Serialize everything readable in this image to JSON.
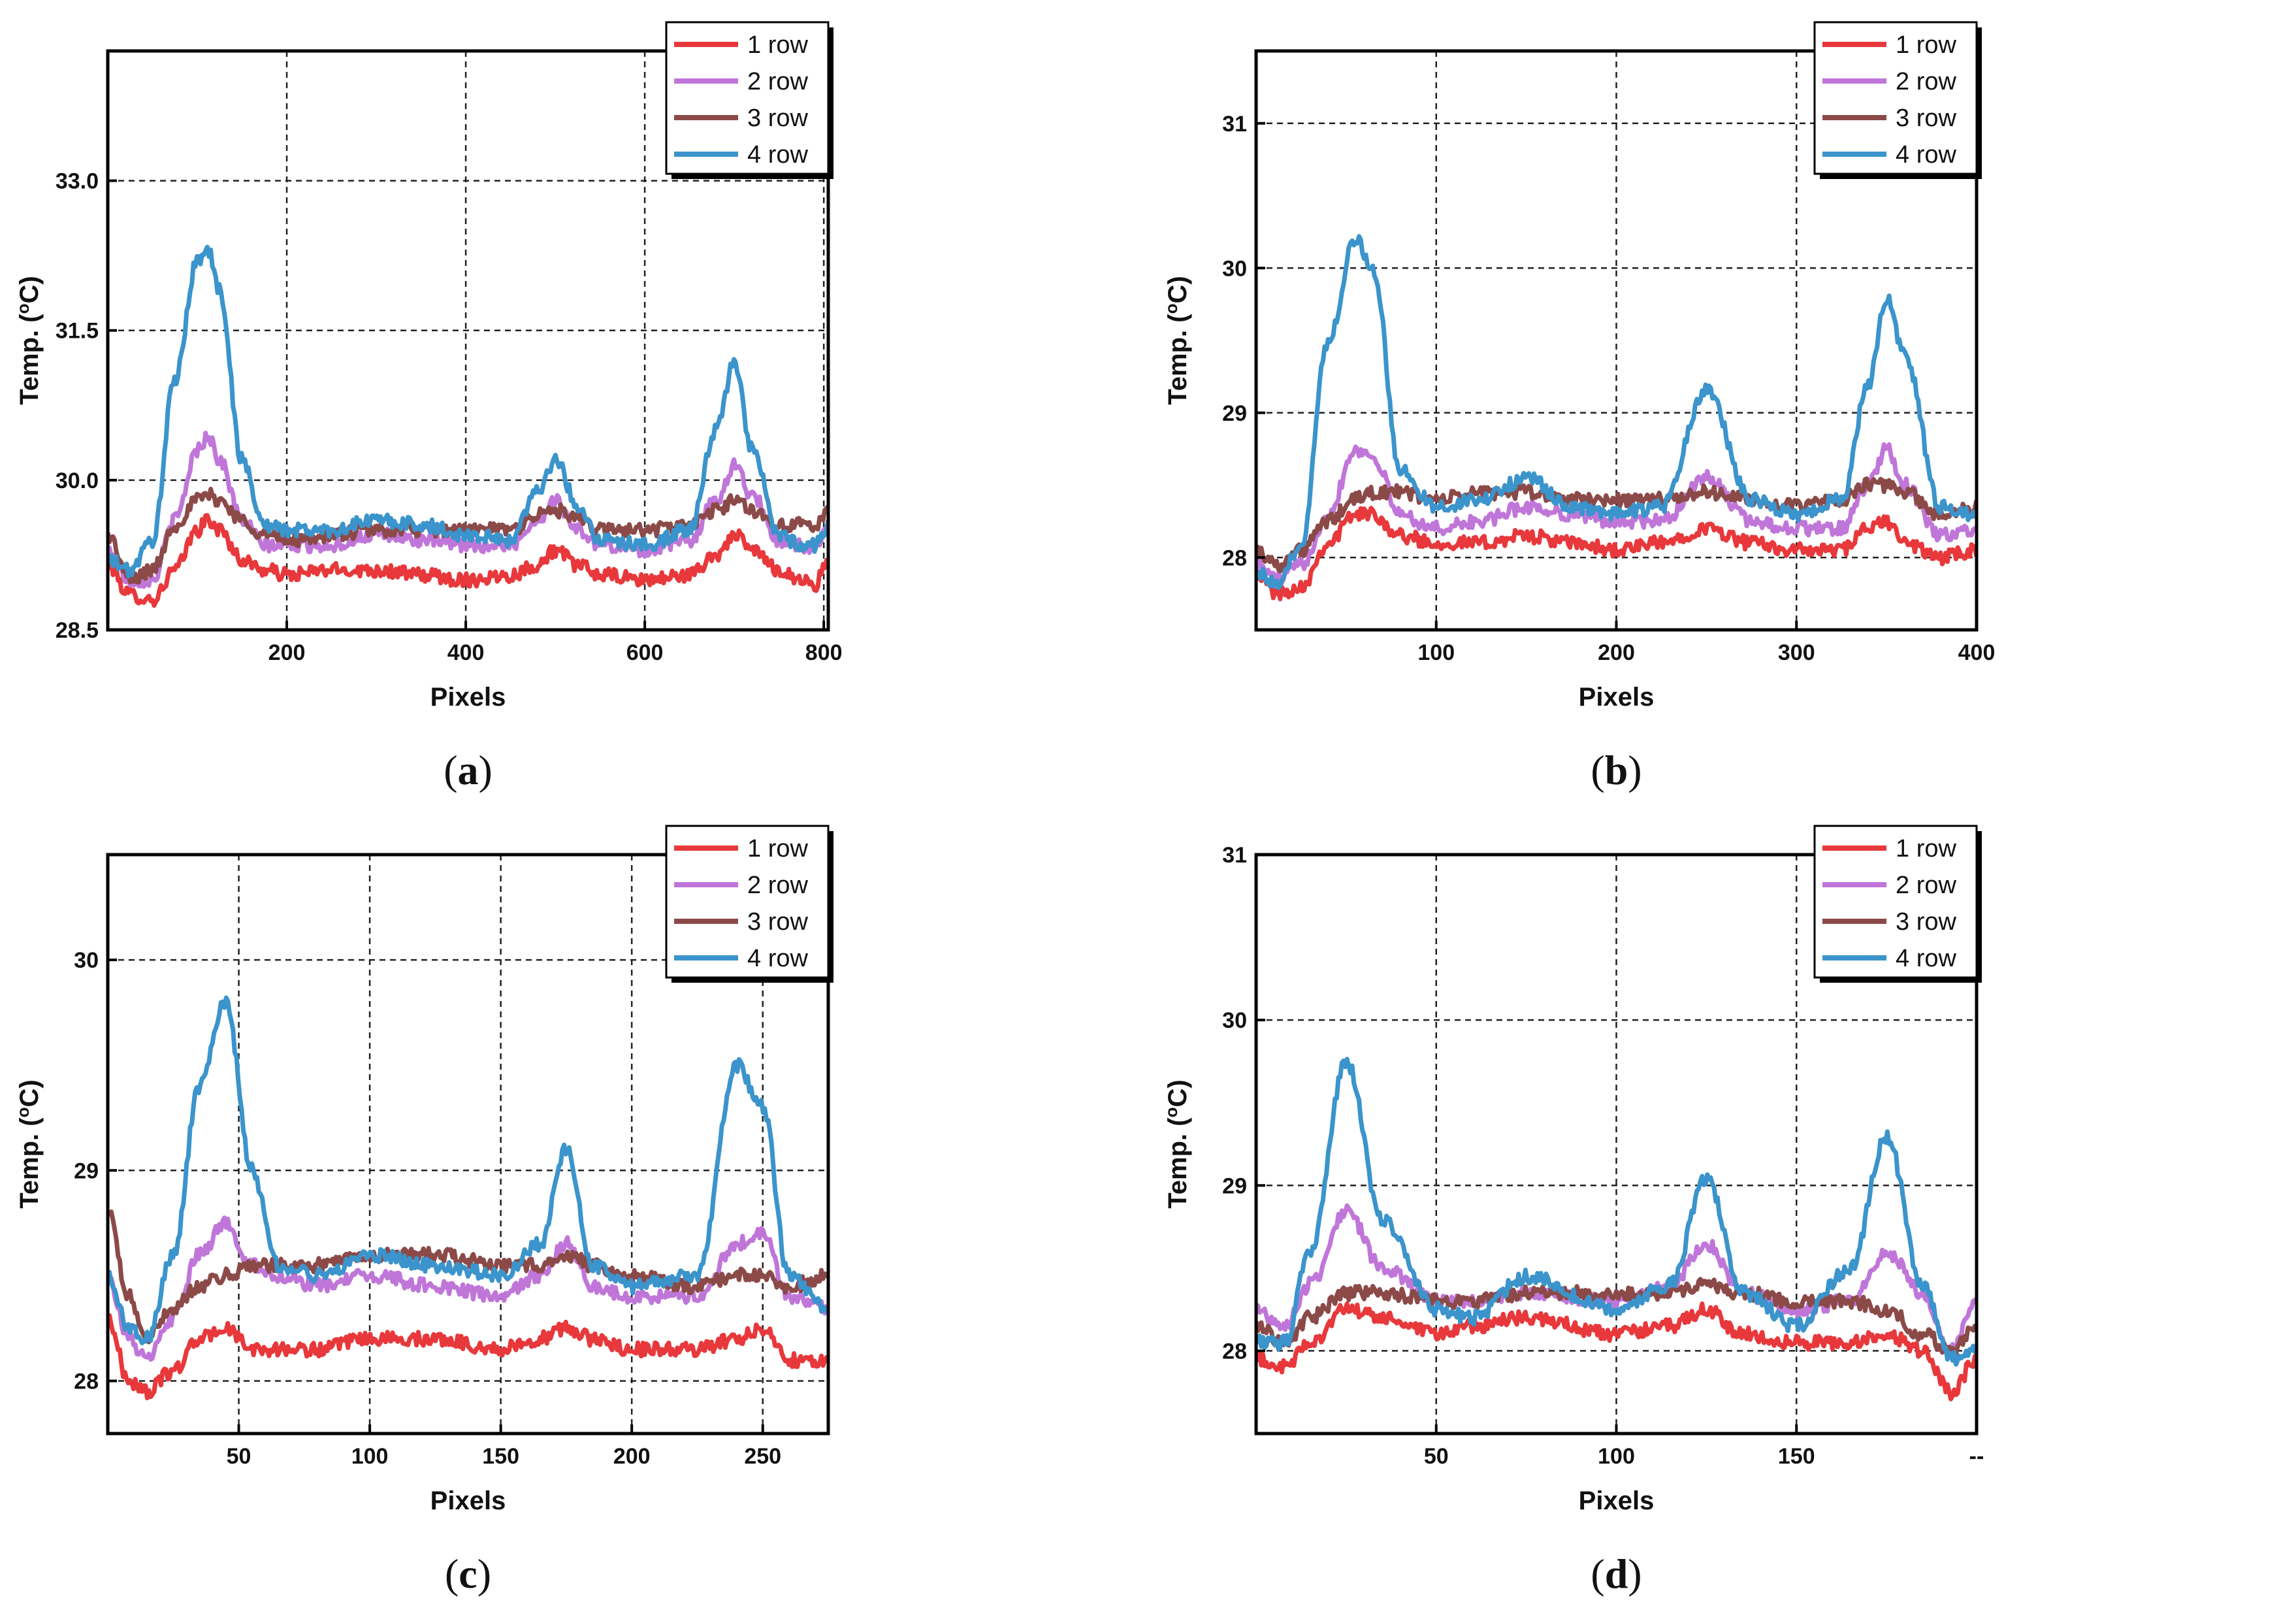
{
  "figure": {
    "colors": {
      "1 row": "#e8383b",
      "2 row": "#c076d9",
      "3 row": "#8b4a48",
      "4 row": "#3b94cc",
      "grid": "#222222",
      "axis": "#000000"
    }
  },
  "chart_data": [
    {
      "id": "a",
      "type": "line",
      "panel_label": "a",
      "title": "",
      "xlabel": "Pixels",
      "ylabel": "Temp. (",
      "ylabel_sup": "o",
      "ylabel_unit": "C)",
      "xlim": [
        0,
        805
      ],
      "ylim": [
        28.5,
        34.3
      ],
      "xticks": [
        200,
        400,
        600,
        800
      ],
      "xtick_labels": [
        "200",
        "400",
        "600",
        "800"
      ],
      "yticks": [
        28.5,
        30.0,
        31.5,
        33.0
      ],
      "ytick_labels": [
        "28.5",
        "30.0",
        "31.5",
        "33.0"
      ],
      "legend": [
        "1 row",
        "2 row",
        "3 row",
        "4 row"
      ],
      "legend_position": "top-right",
      "series": [
        {
          "name": "1 row",
          "x": [
            0,
            25,
            50,
            75,
            100,
            112,
            125,
            150,
            175,
            200,
            250,
            300,
            350,
            400,
            450,
            480,
            500,
            525,
            550,
            600,
            650,
            680,
            700,
            720,
            750,
            775,
            790,
            805
          ],
          "y": [
            29.15,
            28.85,
            28.8,
            29.1,
            29.5,
            29.6,
            29.5,
            29.2,
            29.1,
            29.05,
            29.1,
            29.1,
            29.05,
            29.0,
            29.05,
            29.15,
            29.3,
            29.15,
            29.05,
            29.0,
            29.05,
            29.25,
            29.45,
            29.3,
            29.1,
            29.0,
            28.95,
            29.2
          ]
        },
        {
          "name": "2 row",
          "x": [
            0,
            25,
            50,
            75,
            100,
            112,
            125,
            150,
            175,
            200,
            250,
            300,
            350,
            400,
            450,
            480,
            500,
            525,
            550,
            600,
            650,
            680,
            700,
            720,
            750,
            775,
            790,
            805
          ],
          "y": [
            29.3,
            29.0,
            29.0,
            29.6,
            30.3,
            30.45,
            30.2,
            29.6,
            29.35,
            29.35,
            29.35,
            29.45,
            29.4,
            29.35,
            29.35,
            29.6,
            29.8,
            29.5,
            29.35,
            29.3,
            29.4,
            29.8,
            30.15,
            29.85,
            29.4,
            29.35,
            29.3,
            29.5
          ]
        },
        {
          "name": "3 row",
          "x": [
            0,
            25,
            50,
            75,
            100,
            112,
            125,
            150,
            175,
            200,
            250,
            300,
            350,
            400,
            450,
            480,
            500,
            525,
            550,
            600,
            650,
            680,
            700,
            720,
            750,
            775,
            790,
            805
          ],
          "y": [
            29.45,
            29.0,
            29.1,
            29.55,
            29.8,
            29.85,
            29.8,
            29.6,
            29.45,
            29.4,
            29.45,
            29.5,
            29.5,
            29.5,
            29.5,
            29.65,
            29.7,
            29.6,
            29.5,
            29.5,
            29.55,
            29.7,
            29.8,
            29.7,
            29.55,
            29.55,
            29.5,
            29.75
          ]
        },
        {
          "name": "4 row",
          "x": [
            0,
            25,
            50,
            75,
            100,
            112,
            125,
            150,
            175,
            200,
            250,
            300,
            350,
            400,
            450,
            480,
            500,
            525,
            550,
            600,
            650,
            680,
            700,
            720,
            750,
            775,
            790,
            805
          ],
          "y": [
            29.2,
            29.1,
            29.4,
            31.0,
            32.2,
            32.3,
            31.9,
            30.2,
            29.55,
            29.5,
            29.5,
            29.6,
            29.55,
            29.45,
            29.4,
            29.9,
            30.2,
            29.75,
            29.4,
            29.35,
            29.5,
            30.5,
            31.2,
            30.3,
            29.45,
            29.35,
            29.35,
            29.55
          ]
        }
      ]
    },
    {
      "id": "b",
      "type": "line",
      "panel_label": "b",
      "title": "",
      "xlabel": "Pixels",
      "ylabel": "Temp. (",
      "ylabel_sup": "o",
      "ylabel_unit": "C)",
      "xlim": [
        0,
        400
      ],
      "ylim": [
        27.5,
        31.5
      ],
      "xticks": [
        100,
        200,
        300,
        400
      ],
      "xtick_labels": [
        "100",
        "200",
        "300",
        "400"
      ],
      "yticks": [
        28,
        29,
        30,
        31
      ],
      "ytick_labels": [
        "28",
        "29",
        "30",
        "31"
      ],
      "legend": [
        "1 row",
        "2 row",
        "3 row",
        "4 row"
      ],
      "legend_position": "top-right",
      "series": [
        {
          "name": "1 row",
          "x": [
            0,
            12,
            25,
            40,
            55,
            65,
            80,
            100,
            125,
            150,
            175,
            200,
            225,
            250,
            275,
            300,
            325,
            340,
            350,
            360,
            380,
            400
          ],
          "y": [
            27.9,
            27.75,
            27.8,
            28.1,
            28.3,
            28.3,
            28.15,
            28.1,
            28.1,
            28.15,
            28.1,
            28.05,
            28.1,
            28.2,
            28.1,
            28.05,
            28.05,
            28.2,
            28.25,
            28.1,
            28.0,
            28.05
          ]
        },
        {
          "name": "2 row",
          "x": [
            0,
            12,
            25,
            40,
            55,
            65,
            80,
            100,
            125,
            150,
            175,
            200,
            225,
            250,
            275,
            300,
            325,
            340,
            350,
            360,
            380,
            400
          ],
          "y": [
            27.95,
            27.85,
            27.95,
            28.3,
            28.75,
            28.7,
            28.3,
            28.2,
            28.25,
            28.35,
            28.3,
            28.25,
            28.25,
            28.55,
            28.25,
            28.2,
            28.2,
            28.5,
            28.75,
            28.5,
            28.15,
            28.2
          ]
        },
        {
          "name": "3 row",
          "x": [
            0,
            12,
            25,
            40,
            55,
            65,
            80,
            100,
            125,
            150,
            175,
            200,
            225,
            250,
            275,
            300,
            325,
            340,
            350,
            360,
            380,
            400
          ],
          "y": [
            28.05,
            27.95,
            28.05,
            28.25,
            28.4,
            28.45,
            28.45,
            28.4,
            28.45,
            28.45,
            28.4,
            28.4,
            28.4,
            28.45,
            28.4,
            28.35,
            28.4,
            28.5,
            28.5,
            28.45,
            28.3,
            28.35
          ]
        },
        {
          "name": "4 row",
          "x": [
            0,
            12,
            25,
            40,
            55,
            65,
            80,
            100,
            125,
            150,
            175,
            200,
            225,
            250,
            275,
            300,
            325,
            340,
            350,
            360,
            380,
            400
          ],
          "y": [
            27.9,
            27.8,
            28.1,
            29.5,
            30.2,
            30.0,
            28.6,
            28.35,
            28.4,
            28.55,
            28.35,
            28.3,
            28.35,
            29.15,
            28.4,
            28.3,
            28.4,
            29.2,
            29.8,
            29.4,
            28.35,
            28.3
          ]
        }
      ]
    },
    {
      "id": "c",
      "type": "line",
      "panel_label": "c",
      "title": "",
      "xlabel": "Pixels",
      "ylabel": "Temp. (",
      "ylabel_sup": "o",
      "ylabel_unit": "C)",
      "xlim": [
        0,
        275
      ],
      "ylim": [
        27.75,
        30.5
      ],
      "xticks": [
        50,
        100,
        150,
        200,
        250
      ],
      "xtick_labels": [
        "50",
        "100",
        "150",
        "200",
        "250"
      ],
      "yticks": [
        28,
        29,
        30
      ],
      "ytick_labels": [
        "28",
        "29",
        "30"
      ],
      "legend": [
        "1 row",
        "2 row",
        "3 row",
        "4 row"
      ],
      "legend_position": "top-right",
      "series": [
        {
          "name": "1 row",
          "x": [
            0,
            8,
            15,
            25,
            35,
            45,
            55,
            65,
            80,
            100,
            125,
            150,
            165,
            175,
            185,
            200,
            225,
            240,
            250,
            260,
            275
          ],
          "y": [
            28.3,
            28.0,
            27.95,
            28.05,
            28.2,
            28.25,
            28.15,
            28.15,
            28.15,
            28.2,
            28.2,
            28.15,
            28.2,
            28.25,
            28.2,
            28.15,
            28.15,
            28.2,
            28.25,
            28.1,
            28.1
          ]
        },
        {
          "name": "2 row",
          "x": [
            0,
            8,
            15,
            25,
            35,
            45,
            55,
            65,
            80,
            100,
            125,
            150,
            165,
            175,
            185,
            200,
            225,
            240,
            250,
            260,
            275
          ],
          "y": [
            28.5,
            28.2,
            28.1,
            28.3,
            28.6,
            28.75,
            28.55,
            28.5,
            28.45,
            28.5,
            28.45,
            28.4,
            28.5,
            28.65,
            28.45,
            28.4,
            28.4,
            28.65,
            28.7,
            28.4,
            28.35
          ]
        },
        {
          "name": "3 row",
          "x": [
            0,
            8,
            15,
            25,
            35,
            45,
            55,
            65,
            80,
            100,
            125,
            150,
            165,
            175,
            185,
            200,
            225,
            240,
            250,
            260,
            275
          ],
          "y": [
            28.8,
            28.4,
            28.2,
            28.35,
            28.45,
            28.5,
            28.55,
            28.55,
            28.55,
            28.6,
            28.6,
            28.55,
            28.55,
            28.6,
            28.55,
            28.5,
            28.45,
            28.5,
            28.5,
            28.45,
            28.5
          ]
        },
        {
          "name": "4 row",
          "x": [
            0,
            8,
            15,
            25,
            35,
            45,
            55,
            65,
            80,
            100,
            125,
            150,
            165,
            175,
            185,
            200,
            225,
            240,
            250,
            260,
            275
          ],
          "y": [
            28.5,
            28.25,
            28.2,
            28.6,
            29.4,
            29.8,
            29.0,
            28.55,
            28.5,
            28.6,
            28.55,
            28.5,
            28.65,
            29.1,
            28.55,
            28.45,
            28.5,
            29.5,
            29.3,
            28.5,
            28.35
          ]
        }
      ]
    },
    {
      "id": "d",
      "type": "line",
      "panel_label": "d",
      "title": "",
      "xlabel": "Pixels",
      "ylabel": "Temp. (",
      "ylabel_sup": "o",
      "ylabel_unit": "C)",
      "xlim": [
        0,
        200
      ],
      "ylim": [
        27.5,
        31.0
      ],
      "xticks": [
        50,
        100,
        150,
        200
      ],
      "xtick_labels": [
        "50",
        "100",
        "150",
        "--"
      ],
      "yticks": [
        28,
        29,
        30,
        31
      ],
      "ytick_labels": [
        "28",
        "29",
        "30",
        "31"
      ],
      "legend": [
        "1 row",
        "2 row",
        "3 row",
        "4 row"
      ],
      "legend_position": "top-right",
      "series": [
        {
          "name": "1 row",
          "x": [
            0,
            8,
            15,
            25,
            35,
            50,
            60,
            75,
            100,
            115,
            125,
            135,
            150,
            165,
            175,
            185,
            193,
            200
          ],
          "y": [
            27.95,
            27.9,
            28.05,
            28.25,
            28.2,
            28.1,
            28.15,
            28.2,
            28.1,
            28.15,
            28.25,
            28.1,
            28.05,
            28.05,
            28.1,
            28.0,
            27.75,
            27.95
          ]
        },
        {
          "name": "2 row",
          "x": [
            0,
            8,
            15,
            25,
            35,
            50,
            60,
            75,
            100,
            115,
            125,
            135,
            150,
            165,
            175,
            185,
            193,
            200
          ],
          "y": [
            28.25,
            28.15,
            28.4,
            28.85,
            28.5,
            28.3,
            28.3,
            28.35,
            28.3,
            28.4,
            28.65,
            28.35,
            28.25,
            28.3,
            28.6,
            28.35,
            28.0,
            28.3
          ]
        },
        {
          "name": "3 row",
          "x": [
            0,
            8,
            15,
            25,
            35,
            50,
            60,
            75,
            100,
            115,
            125,
            135,
            150,
            165,
            175,
            185,
            193,
            200
          ],
          "y": [
            28.15,
            28.05,
            28.2,
            28.35,
            28.35,
            28.3,
            28.3,
            28.35,
            28.35,
            28.35,
            28.4,
            28.35,
            28.3,
            28.3,
            28.25,
            28.1,
            28.0,
            28.15
          ]
        },
        {
          "name": "4 row",
          "x": [
            0,
            8,
            15,
            25,
            35,
            50,
            60,
            75,
            100,
            115,
            125,
            135,
            150,
            165,
            175,
            185,
            193,
            200
          ],
          "y": [
            28.05,
            28.05,
            28.6,
            29.75,
            28.8,
            28.25,
            28.2,
            28.45,
            28.25,
            28.4,
            29.05,
            28.35,
            28.15,
            28.5,
            29.3,
            28.4,
            27.95,
            28.0
          ]
        }
      ]
    }
  ]
}
